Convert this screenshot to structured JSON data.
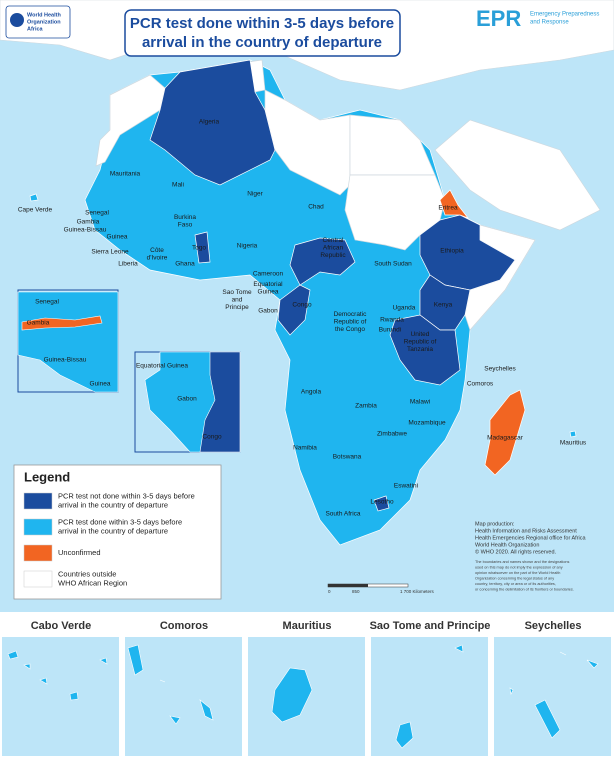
{
  "header": {
    "title": [
      "PCR test done within 3-5 days before",
      "arrival in the country of departure"
    ],
    "logo_left": [
      "World Health",
      "Organization",
      "Africa"
    ],
    "logo_right": {
      "acronym": "EPR",
      "text": [
        "Emergency Preparedness",
        "and Response"
      ]
    }
  },
  "legend": {
    "title": "Legend",
    "items": [
      {
        "label": [
          "PCR test not done within 3-5 days before",
          "arrival in the country of departure"
        ],
        "color": "#1b4c9e"
      },
      {
        "label": [
          "PCR test done within 3-5 days before",
          "arrival in the country of departure"
        ],
        "color": "#1fb5ef"
      },
      {
        "label": [
          "Unconfirmed"
        ],
        "color": "#f26522"
      },
      {
        "label": [
          "Countries outside",
          "WHO African Region"
        ],
        "color": "#ffffff"
      }
    ]
  },
  "map": {
    "labels": [
      [
        "Algeria"
      ],
      [
        "Mauritania"
      ],
      [
        "Mali"
      ],
      [
        "Niger"
      ],
      [
        "Chad"
      ],
      [
        "Senegal"
      ],
      [
        "Gambia"
      ],
      [
        "Guinea-Bissau"
      ],
      [
        "Guinea"
      ],
      [
        "Sierra Leone"
      ],
      [
        "Liberia"
      ],
      [
        "Côte",
        "d'Ivoire"
      ],
      [
        "Burkina",
        "Faso"
      ],
      [
        "Ghana"
      ],
      [
        "Togo"
      ],
      [
        "Nigeria"
      ],
      [
        "Cameroon"
      ],
      [
        "Central",
        "African",
        "Republic"
      ],
      [
        "South Sudan"
      ],
      [
        "Ethiopia"
      ],
      [
        "Eritrea"
      ],
      [
        "Equatorial",
        "Guinea"
      ],
      [
        "Gabon"
      ],
      [
        "Congo"
      ],
      [
        "Sao Tome",
        "and",
        "Principe"
      ],
      [
        "Uganda"
      ],
      [
        "Kenya"
      ],
      [
        "Rwanda"
      ],
      [
        "Burundi"
      ],
      [
        "Democratic",
        "Republic of",
        "the Congo"
      ],
      [
        "United",
        "Republic of",
        "Tanzania"
      ],
      [
        "Seychelles"
      ],
      [
        "Comoros"
      ],
      [
        "Angola"
      ],
      [
        "Zambia"
      ],
      [
        "Malawi"
      ],
      [
        "Mozambique"
      ],
      [
        "Madagascar"
      ],
      [
        "Mauritius"
      ],
      [
        "Zimbabwe"
      ],
      [
        "Namibia"
      ],
      [
        "Botswana"
      ],
      [
        "Eswatini"
      ],
      [
        "Lesotho"
      ],
      [
        "South Africa"
      ],
      [
        "Cape Verde"
      ]
    ],
    "inset_west": [
      "Senegal",
      "Gambia",
      "Guinea-Bissau",
      "Guinea"
    ],
    "inset_central": [
      "Equatorial Guinea",
      "Gabon",
      "Congo"
    ],
    "scale": [
      "0",
      "850",
      "1 700 Kilometers"
    ]
  },
  "credits": [
    "Map production:",
    "Health Information and Risks Assessment",
    "Health Emergencies Regional office for Africa",
    "World Health Organization",
    "© WHO 2020. All rights reserved."
  ],
  "disclaimer": [
    "The boundaries and names shown and the designations",
    "used on this map do not imply the expression of any",
    "opinion whatsoever on the part of the World Health",
    "Organization concerning the legal status of any",
    "country, territory, city or area or of its authorities,",
    "or concerning the delimitation of its frontiers or boundaries."
  ],
  "islands": [
    "Cabo Verde",
    "Comoros",
    "Mauritius",
    "Sao Tome and Principe",
    "Seychelles"
  ]
}
